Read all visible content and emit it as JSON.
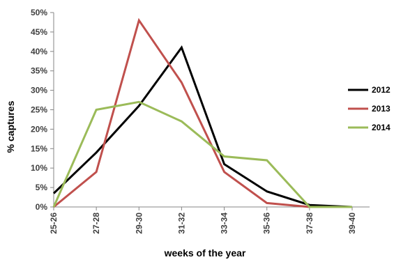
{
  "chart_data": {
    "type": "line",
    "xlabel": "weeks of the year",
    "ylabel": "% captures",
    "categories": [
      "25-26",
      "27-28",
      "29-30",
      "31-32",
      "33-34",
      "35-36",
      "37-38",
      "39-40"
    ],
    "y_ticks": [
      "0%",
      "5%",
      "10%",
      "15%",
      "20%",
      "25%",
      "30%",
      "35%",
      "40%",
      "45%",
      "50%"
    ],
    "ylim": [
      0,
      50
    ],
    "grid": false,
    "legend_position": "right",
    "series": [
      {
        "name": "2012",
        "color": "#000000",
        "values": [
          3.5,
          14,
          26,
          41,
          11,
          4,
          0.5,
          0
        ]
      },
      {
        "name": "2013",
        "color": "#C0504D",
        "values": [
          0,
          9,
          48,
          32,
          9,
          1,
          0,
          0
        ]
      },
      {
        "name": "2014",
        "color": "#9BBB59",
        "values": [
          0,
          25,
          27,
          22,
          13,
          12,
          0,
          0
        ]
      }
    ]
  }
}
